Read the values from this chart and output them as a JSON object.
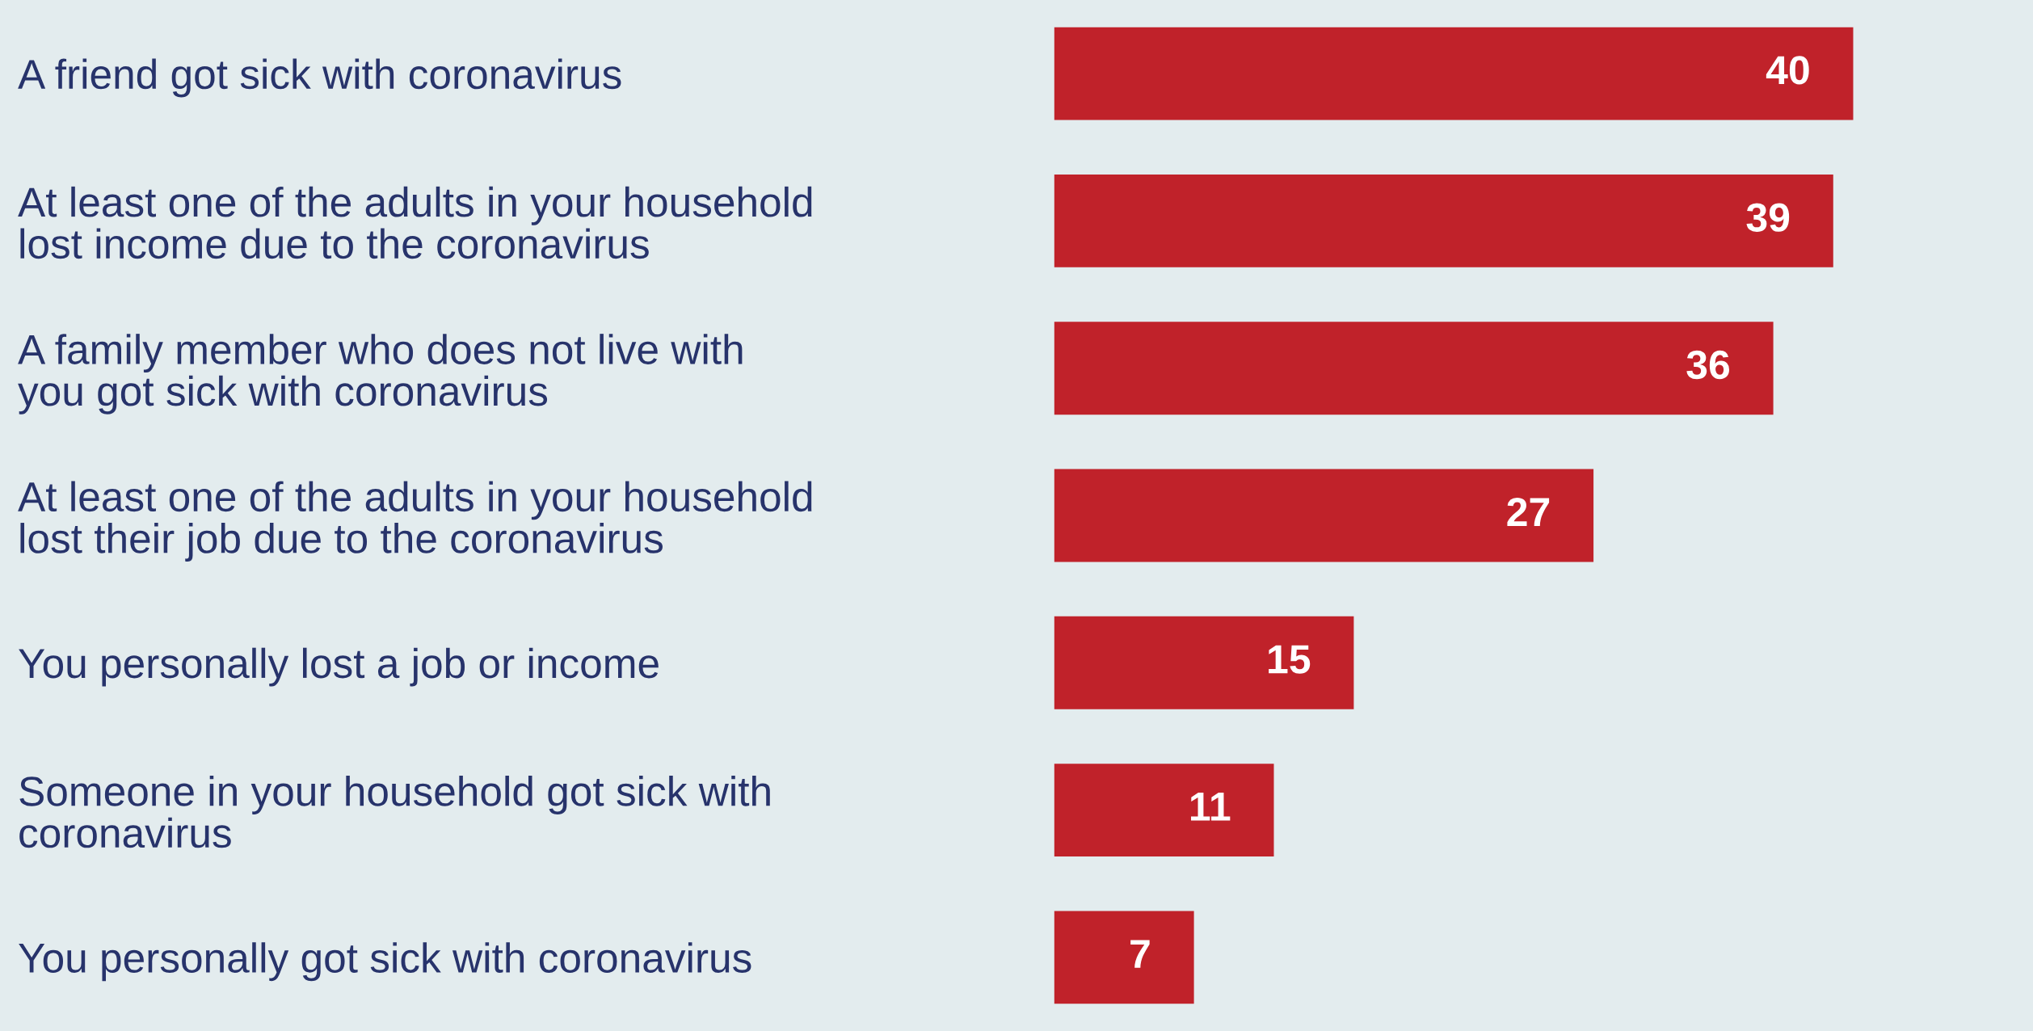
{
  "chart_data": {
    "type": "bar",
    "orientation": "horizontal",
    "categories": [
      "A friend got sick with coronavirus",
      "At least one of the adults in your household\nlost income due to the coronavirus",
      "A family member who does not live with\nyou got sick with coronavirus",
      "At least one of the adults in your household\nlost their job due to the coronavirus",
      "You personally lost a job or income",
      "Someone in your household got sick with\ncoronavirus",
      "You personally got sick with coronavirus"
    ],
    "values": [
      40,
      39,
      36,
      27,
      15,
      11,
      7
    ],
    "color": "#c0222a",
    "data_labels": true,
    "xlim": [
      0,
      49
    ],
    "tick_labels": "y",
    "grid": false,
    "legend": false
  }
}
